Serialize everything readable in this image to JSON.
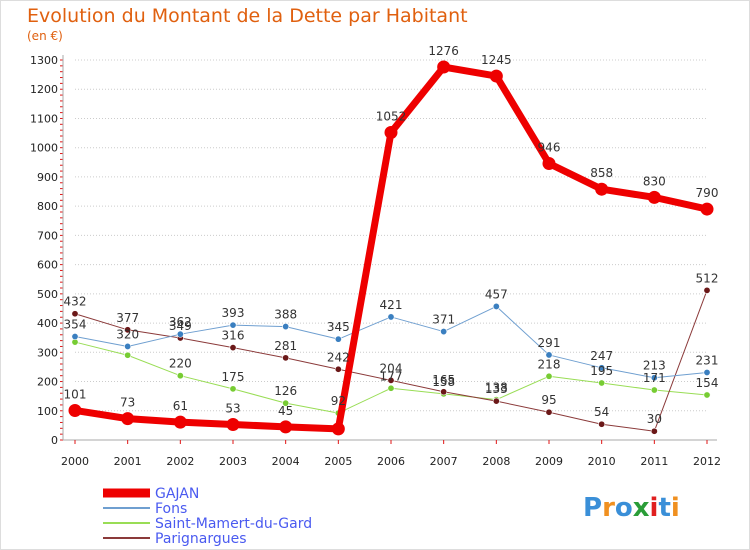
{
  "colors": {
    "title": "#e0600f",
    "grid": "#cccccc",
    "axis": "#aaaaaa",
    "tickmark": "#e11414",
    "legend_text": "#4a5af0"
  },
  "logo": {
    "text": "Proxiti",
    "letters": [
      "P",
      "r",
      "o",
      "x",
      "i",
      "t",
      "i"
    ],
    "letter_colors": [
      "#3a8fd8",
      "#f09020",
      "#3a8fd8",
      "#2a9d38",
      "#e02020",
      "#3a8fd8",
      "#f09020"
    ]
  },
  "chart_data": {
    "type": "line",
    "title": "Evolution du Montant de la Dette par Habitant",
    "subtitle": "(en €)",
    "xlabel": "",
    "ylabel": "",
    "x": [
      "2000",
      "2001",
      "2002",
      "2003",
      "2004",
      "2005",
      "2006",
      "2007",
      "2008",
      "2009",
      "2010",
      "2011",
      "2012"
    ],
    "ylim": [
      0,
      1300
    ],
    "yticks": [
      0,
      100,
      200,
      300,
      400,
      500,
      600,
      700,
      800,
      900,
      1000,
      1100,
      1200,
      1300
    ],
    "grid": "horizontal",
    "legend": "bottom-left",
    "series": [
      {
        "name": "Saint-Mamert-du-Gard",
        "color": "#99dd55",
        "marker": "#77cc33",
        "width": 1,
        "values": [
          335,
          290,
          220,
          175,
          126,
          92,
          177,
          158,
          138,
          218,
          195,
          171,
          154
        ],
        "labels": [
          "",
          "",
          "220",
          "175",
          "126",
          "92",
          "177",
          "158",
          "138",
          "218",
          "195",
          "171",
          "154"
        ]
      },
      {
        "name": "Parignargues",
        "color": "#8b3a3a",
        "marker": "#6b1818",
        "width": 1,
        "values": [
          432,
          377,
          349,
          316,
          281,
          242,
          204,
          165,
          133,
          95,
          54,
          30,
          512
        ],
        "labels": [
          "432",
          "377",
          "349",
          "316",
          "281",
          "242",
          "204",
          "165",
          "133",
          "95",
          "54",
          "30",
          "512"
        ]
      },
      {
        "name": "Fons",
        "color": "#6f9fd0",
        "marker": "#3a7fc0",
        "width": 1,
        "values": [
          354,
          320,
          362,
          393,
          388,
          345,
          421,
          371,
          457,
          291,
          247,
          213,
          231
        ],
        "labels": [
          "354",
          "320",
          "362",
          "393",
          "388",
          "345",
          "421",
          "371",
          "457",
          "291",
          "247",
          "213",
          "231"
        ]
      },
      {
        "name": "GAJAN",
        "color": "#ee0000",
        "marker": "#ee0000",
        "width": 7,
        "values": [
          101,
          73,
          61,
          53,
          45,
          38,
          1052,
          1276,
          1245,
          946,
          858,
          830,
          790
        ],
        "labels": [
          "101",
          "73",
          "61",
          "53",
          "45",
          "",
          "1052",
          "1276",
          "1245",
          "946",
          "858",
          "830",
          "790"
        ]
      }
    ],
    "legend_entries": [
      {
        "name": "GAJAN",
        "color": "#ee0000",
        "width": 9
      },
      {
        "name": "Fons",
        "color": "#6f9fd0",
        "width": 2
      },
      {
        "name": "Saint-Mamert-du-Gard",
        "color": "#99dd55",
        "width": 2
      },
      {
        "name": "Parignargues",
        "color": "#8b3a3a",
        "width": 2
      }
    ]
  }
}
